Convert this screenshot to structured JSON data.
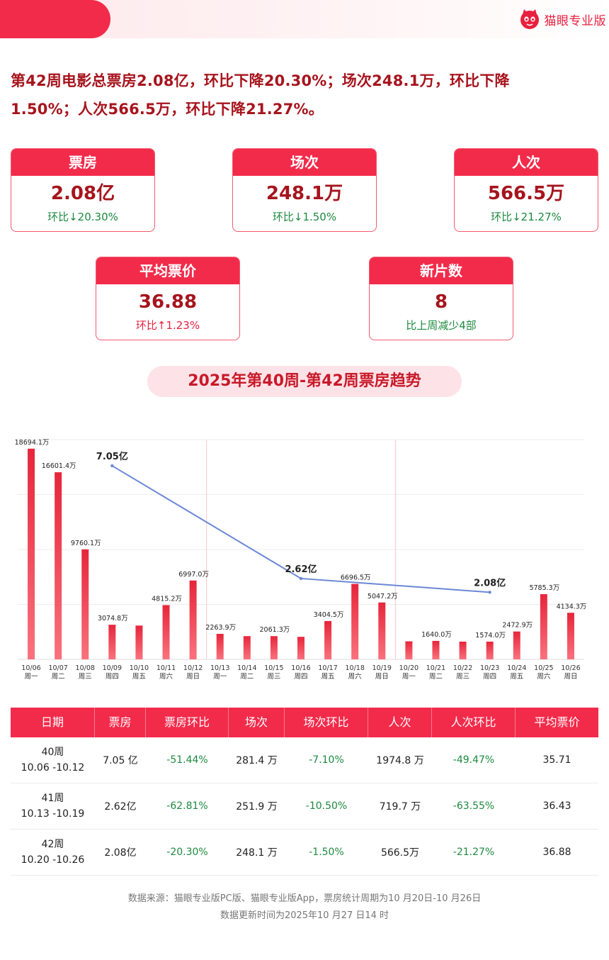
{
  "brand": {
    "name": "猫眼专业版",
    "color": "#e8203f"
  },
  "headline": {
    "line1": "第42周电影总票房2.08亿，环比下降20.30%；场次248.1万，环比下降",
    "line2": "1.50%；人次566.5万，环比下降21.27%。"
  },
  "cards": [
    {
      "title": "票房",
      "value": "2.08亿",
      "change": "环比↓20.30%"
    },
    {
      "title": "场次",
      "value": "248.1万",
      "change": "环比↓1.50%"
    },
    {
      "title": "人次",
      "value": "566.5万",
      "change": "环比↓21.27%"
    },
    {
      "title": "平均票价",
      "value": "36.88",
      "change": "环比↑1.23%"
    },
    {
      "title": "新片数",
      "value": "8",
      "change": "比上周减少4部"
    }
  ],
  "trend_title": "2025年第40周-第42周票房趋势",
  "chart_data": {
    "type": "bar",
    "categories": [
      "10/06",
      "10/07",
      "10/08",
      "10/09",
      "10/10",
      "10/11",
      "10/12",
      "10/13",
      "10/14",
      "10/15",
      "10/16",
      "10/17",
      "10/18",
      "10/19",
      "10/20",
      "10/21",
      "10/22",
      "10/23",
      "10/24",
      "10/25",
      "10/26"
    ],
    "weekdays": [
      "周一",
      "周二",
      "周三",
      "周四",
      "周五",
      "周六",
      "周日",
      "周一",
      "周二",
      "周三",
      "周四",
      "周五",
      "周六",
      "周日",
      "周一",
      "周二",
      "周三",
      "周四",
      "周五",
      "周六",
      "周日"
    ],
    "series": [
      {
        "values": [
          18694.1,
          16601.4,
          9760.1,
          3074.8,
          3000,
          4815.2,
          6997.0,
          2263.9,
          2061.3,
          2061.3,
          2000,
          3404.5,
          6696.5,
          5047.2,
          1600,
          1640.0,
          1574.0,
          1574.0,
          2472.9,
          5785.3,
          4134.3
        ],
        "labels": [
          "18694.1万",
          "16601.4万",
          "9760.1万",
          "3074.8万",
          "",
          "4815.2万",
          "6997.0万",
          "2263.9万",
          "",
          "2061.3万",
          "",
          "3404.5万",
          "6696.5万",
          "5047.2万",
          "",
          "1640.0万",
          "",
          "1574.0万",
          "2472.9万",
          "5785.3万",
          "4134.3万"
        ]
      }
    ],
    "weekly_line": {
      "points": [
        {
          "category": "10/09",
          "value": 7.05,
          "label": "7.05亿"
        },
        {
          "category": "10/16",
          "value": 2.62,
          "label": "2.62亿"
        },
        {
          "category": "10/23",
          "value": 2.08,
          "label": "2.08亿"
        }
      ]
    },
    "colors": {
      "bar_top": "#e6263b",
      "bar_bottom": "#f9727d",
      "line": "#6b88d6"
    },
    "week_divider_after": [
      "10/12",
      "10/19"
    ]
  },
  "table": {
    "headers": [
      "日期",
      "票房",
      "票房环比",
      "场次",
      "场次环比",
      "人次",
      "人次环比",
      "平均票价"
    ],
    "rows": [
      {
        "week": "40周",
        "range": "10.06 -10.12",
        "box": "7.05 亿",
        "box_chg": "-51.44%",
        "shows": "281.4 万",
        "shows_chg": "-7.10%",
        "adm": "1974.8 万",
        "adm_chg": "-49.47%",
        "price": "35.71"
      },
      {
        "week": "41周",
        "range": "10.13 -10.19",
        "box": "2.62亿",
        "box_chg": "-62.81%",
        "shows": "251.9 万",
        "shows_chg": "-10.50%",
        "adm": "719.7 万",
        "adm_chg": "-63.55%",
        "price": "36.43"
      },
      {
        "week": "42周",
        "range": "10.20 -10.26",
        "box": "2.08亿",
        "box_chg": "-20.30%",
        "shows": "248.1 万",
        "shows_chg": "-1.50%",
        "adm": "566.5万",
        "adm_chg": "-21.27%",
        "price": "36.88"
      }
    ]
  },
  "footer": {
    "line1": "数据来源：猫眼专业版PC版、猫眼专业版App，票房统计周期为10 月20日-10 月26日",
    "line2": "数据更新时间为2025年10 月27 日14 时"
  }
}
